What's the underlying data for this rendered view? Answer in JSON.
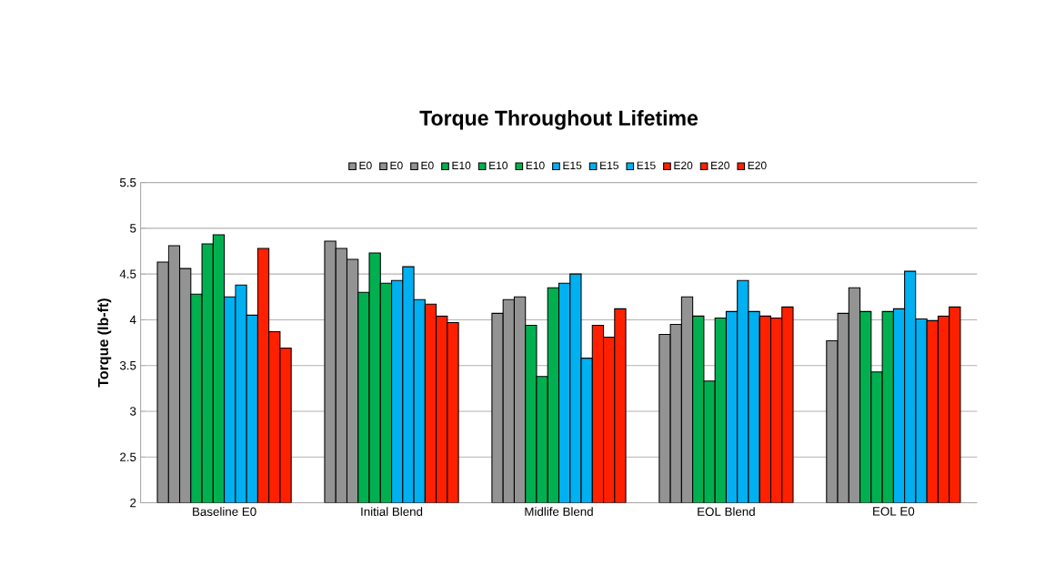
{
  "chart_data": {
    "type": "bar",
    "title": "Torque Throughout Lifetime",
    "ylabel": "Torque (lb-ft)",
    "categories": [
      "Baseline E0",
      "Initial Blend",
      "Midlife Blend",
      "EOL Blend",
      "EOL E0"
    ],
    "series": [
      {
        "name": "E0",
        "color": "#939393",
        "values": [
          4.63,
          4.86,
          4.07,
          3.84,
          3.77
        ]
      },
      {
        "name": "E0",
        "color": "#939393",
        "values": [
          4.81,
          4.78,
          4.22,
          3.95,
          4.07
        ]
      },
      {
        "name": "E0",
        "color": "#939393",
        "values": [
          4.56,
          4.66,
          4.25,
          4.25,
          4.35
        ]
      },
      {
        "name": "E10",
        "color": "#00b050",
        "values": [
          4.28,
          4.3,
          3.94,
          4.04,
          4.09
        ]
      },
      {
        "name": "E10",
        "color": "#00b050",
        "values": [
          4.83,
          4.73,
          3.38,
          3.33,
          3.43
        ]
      },
      {
        "name": "E10",
        "color": "#00b050",
        "values": [
          4.93,
          4.4,
          4.35,
          4.02,
          4.09
        ]
      },
      {
        "name": "E15",
        "color": "#00b0f0",
        "values": [
          4.25,
          4.43,
          4.4,
          4.09,
          4.12
        ]
      },
      {
        "name": "E15",
        "color": "#00b0f0",
        "values": [
          4.38,
          4.58,
          4.5,
          4.43,
          4.53
        ]
      },
      {
        "name": "E15",
        "color": "#00b0f0",
        "values": [
          4.05,
          4.22,
          3.58,
          4.09,
          4.01
        ]
      },
      {
        "name": "E20",
        "color": "#ff2000",
        "values": [
          4.78,
          4.17,
          3.94,
          4.04,
          3.99
        ]
      },
      {
        "name": "E20",
        "color": "#ff2000",
        "values": [
          3.87,
          4.04,
          3.81,
          4.02,
          4.04
        ]
      },
      {
        "name": "E20",
        "color": "#ff2000",
        "values": [
          3.69,
          3.97,
          4.12,
          4.14,
          4.14
        ]
      }
    ],
    "ylim": [
      2,
      5.5
    ],
    "yticks": [
      2,
      2.5,
      3,
      3.5,
      4,
      4.5,
      5,
      5.5
    ],
    "grid": "y",
    "legend": "top"
  }
}
